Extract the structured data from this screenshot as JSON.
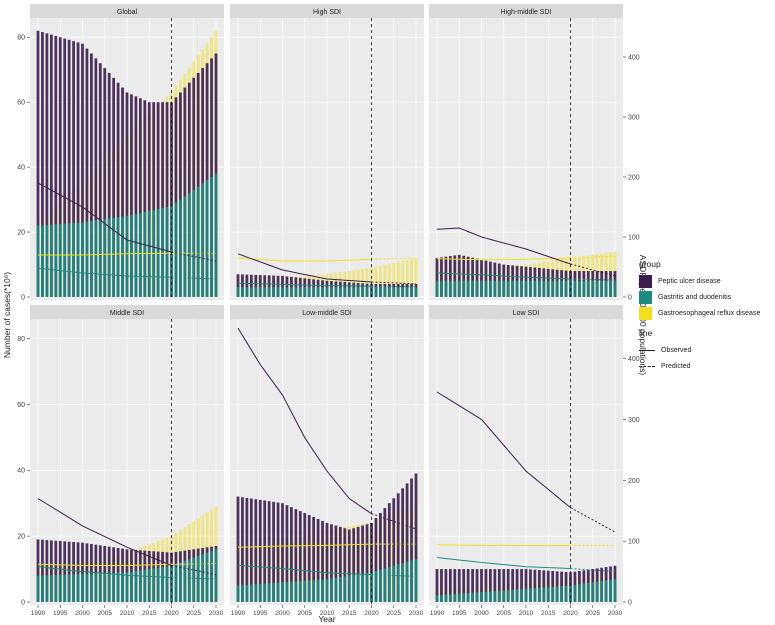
{
  "colors": {
    "peptic": "#3b1d4e",
    "gastritis": "#1e8b80",
    "gerd": "#f0e020",
    "panel_bg": "#ebebeb",
    "strip_bg": "#d9d9d9",
    "grid": "#ffffff"
  },
  "axes": {
    "xlabel": "Year",
    "ylabel_left": "Number of cases(*10⁶)",
    "ylabel_right": "ASDR (per 100000 populations)",
    "x_ticks": [
      "1990",
      "1995",
      "2000",
      "2005",
      "2010",
      "2015",
      "2020",
      "2025",
      "2030"
    ],
    "y_left_ticks": [
      "0",
      "20",
      "40",
      "60",
      "80"
    ],
    "y_right_ticks": [
      "0",
      "100",
      "200",
      "300",
      "400"
    ]
  },
  "legend": {
    "group_title": "group",
    "group_items": [
      "Peptic ulcer disease",
      "Gastritis and duodenitis",
      "Gastroesophageal reflux disease"
    ],
    "line_title": "line",
    "line_items": [
      "Observed",
      "Predicted"
    ]
  },
  "chart_data": {
    "type": "bar",
    "x_range": [
      1990,
      2030
    ],
    "observed_until": 2020,
    "ylim_left": [
      0,
      85
    ],
    "ylim_right": [
      0,
      460
    ],
    "panels": [
      {
        "title": "Global",
        "bars": {
          "peptic": [
            [
              1990,
              82
            ],
            [
              2000,
              78
            ],
            [
              2010,
              63
            ],
            [
              2015,
              60
            ],
            [
              2020,
              60
            ],
            [
              2030,
              75
            ]
          ],
          "gastritis": [
            [
              1990,
              22
            ],
            [
              2000,
              23
            ],
            [
              2010,
              25
            ],
            [
              2020,
              28
            ],
            [
              2030,
              38
            ]
          ],
          "gerd": [
            [
              1990,
              23
            ],
            [
              2000,
              35
            ],
            [
              2010,
              50
            ],
            [
              2020,
              63
            ],
            [
              2030,
              82
            ]
          ]
        },
        "lines": {
          "peptic": [
            [
              1990,
              190
            ],
            [
              2000,
              150
            ],
            [
              2010,
              95
            ],
            [
              2020,
              75
            ],
            [
              2030,
              60
            ]
          ],
          "gastritis": [
            [
              1990,
              48
            ],
            [
              2000,
              40
            ],
            [
              2010,
              35
            ],
            [
              2020,
              33
            ],
            [
              2030,
              30
            ]
          ],
          "gerd": [
            [
              1990,
              70
            ],
            [
              2000,
              70
            ],
            [
              2010,
              72
            ],
            [
              2020,
              73
            ],
            [
              2030,
              73
            ]
          ]
        }
      },
      {
        "title": "High SDI",
        "bars": {
          "peptic": [
            [
              1990,
              7
            ],
            [
              2000,
              6.5
            ],
            [
              2010,
              5
            ],
            [
              2020,
              4
            ],
            [
              2030,
              4
            ]
          ],
          "gastritis": [
            [
              1990,
              3
            ],
            [
              2000,
              3
            ],
            [
              2010,
              3
            ],
            [
              2020,
              3
            ],
            [
              2030,
              3
            ]
          ],
          "gerd": [
            [
              1990,
              6
            ],
            [
              2000,
              6
            ],
            [
              2010,
              7
            ],
            [
              2020,
              9
            ],
            [
              2030,
              12
            ]
          ]
        },
        "lines": {
          "peptic": [
            [
              1990,
              72
            ],
            [
              2000,
              45
            ],
            [
              2010,
              30
            ],
            [
              2020,
              25
            ],
            [
              2030,
              22
            ]
          ],
          "gastritis": [
            [
              1990,
              23
            ],
            [
              2000,
              21
            ],
            [
              2010,
              19
            ],
            [
              2020,
              18
            ],
            [
              2030,
              17
            ]
          ],
          "gerd": [
            [
              1990,
              65
            ],
            [
              2000,
              60
            ],
            [
              2010,
              60
            ],
            [
              2020,
              63
            ],
            [
              2030,
              65
            ]
          ]
        }
      },
      {
        "title": "High-middle SDI",
        "bars": {
          "peptic": [
            [
              1990,
              12
            ],
            [
              1995,
              13
            ],
            [
              2005,
              10
            ],
            [
              2020,
              8
            ],
            [
              2030,
              8
            ]
          ],
          "gastritis": [
            [
              1990,
              5
            ],
            [
              2000,
              5
            ],
            [
              2010,
              5
            ],
            [
              2020,
              5
            ],
            [
              2030,
              5
            ]
          ],
          "gerd": [
            [
              1990,
              9
            ],
            [
              2000,
              9
            ],
            [
              2010,
              10
            ],
            [
              2020,
              12
            ],
            [
              2030,
              14
            ]
          ]
        },
        "lines": {
          "peptic": [
            [
              1990,
              113
            ],
            [
              1995,
              115
            ],
            [
              2000,
              100
            ],
            [
              2010,
              80
            ],
            [
              2020,
              55
            ],
            [
              2030,
              35
            ]
          ],
          "gastritis": [
            [
              1990,
              40
            ],
            [
              2000,
              37
            ],
            [
              2010,
              33
            ],
            [
              2020,
              30
            ],
            [
              2030,
              28
            ]
          ],
          "gerd": [
            [
              1990,
              64
            ],
            [
              2000,
              62
            ],
            [
              2010,
              63
            ],
            [
              2020,
              65
            ],
            [
              2030,
              68
            ]
          ]
        }
      },
      {
        "title": "Middle SDI",
        "bars": {
          "peptic": [
            [
              1990,
              19
            ],
            [
              2000,
              18
            ],
            [
              2010,
              16
            ],
            [
              2020,
              15
            ],
            [
              2030,
              17
            ]
          ],
          "gastritis": [
            [
              1990,
              8
            ],
            [
              2000,
              8.5
            ],
            [
              2010,
              9
            ],
            [
              2020,
              11
            ],
            [
              2030,
              16
            ]
          ],
          "gerd": [
            [
              1990,
              11
            ],
            [
              2000,
              12
            ],
            [
              2010,
              15
            ],
            [
              2020,
              20
            ],
            [
              2030,
              29
            ]
          ]
        },
        "lines": {
          "peptic": [
            [
              1990,
              170
            ],
            [
              2000,
              125
            ],
            [
              2010,
              90
            ],
            [
              2020,
              60
            ],
            [
              2030,
              45
            ]
          ],
          "gastritis": [
            [
              1990,
              58
            ],
            [
              2000,
              50
            ],
            [
              2010,
              44
            ],
            [
              2020,
              40
            ],
            [
              2030,
              38
            ]
          ],
          "gerd": [
            [
              1990,
              62
            ],
            [
              2000,
              60
            ],
            [
              2010,
              60
            ],
            [
              2020,
              62
            ],
            [
              2030,
              63
            ]
          ]
        }
      },
      {
        "title": "Low-middle SDI",
        "bars": {
          "peptic": [
            [
              1990,
              32
            ],
            [
              2000,
              30
            ],
            [
              2010,
              24
            ],
            [
              2015,
              22
            ],
            [
              2020,
              24
            ],
            [
              2030,
              39
            ]
          ],
          "gastritis": [
            [
              1990,
              5
            ],
            [
              2000,
              6
            ],
            [
              2010,
              7
            ],
            [
              2020,
              9
            ],
            [
              2030,
              13
            ]
          ],
          "gerd": [
            [
              1990,
              15
            ],
            [
              2000,
              18
            ],
            [
              2010,
              22
            ],
            [
              2020,
              24
            ],
            [
              2030,
              30
            ]
          ]
        },
        "lines": {
          "peptic": [
            [
              1990,
              450
            ],
            [
              1995,
              390
            ],
            [
              2000,
              340
            ],
            [
              2005,
              270
            ],
            [
              2010,
              215
            ],
            [
              2015,
              170
            ],
            [
              2020,
              145
            ],
            [
              2030,
              120
            ]
          ],
          "gastritis": [
            [
              1990,
              60
            ],
            [
              2000,
              55
            ],
            [
              2010,
              48
            ],
            [
              2020,
              45
            ],
            [
              2030,
              42
            ]
          ],
          "gerd": [
            [
              1990,
              90
            ],
            [
              2000,
              92
            ],
            [
              2010,
              93
            ],
            [
              2020,
              95
            ],
            [
              2030,
              95
            ]
          ]
        }
      },
      {
        "title": "Low SDI",
        "bars": {
          "peptic": [
            [
              1990,
              10
            ],
            [
              2000,
              10
            ],
            [
              2010,
              10
            ],
            [
              2020,
              9
            ],
            [
              2030,
              11
            ]
          ],
          "gastritis": [
            [
              1990,
              2
            ],
            [
              2000,
              3
            ],
            [
              2010,
              4
            ],
            [
              2020,
              5
            ],
            [
              2030,
              7
            ]
          ],
          "gerd": [
            [
              1990,
              4
            ],
            [
              2000,
              5
            ],
            [
              2010,
              6
            ],
            [
              2020,
              7
            ],
            [
              2030,
              9
            ]
          ]
        },
        "lines": {
          "peptic": [
            [
              1990,
              345
            ],
            [
              2000,
              300
            ],
            [
              2010,
              215
            ],
            [
              2020,
              155
            ],
            [
              2030,
              115
            ]
          ],
          "gastritis": [
            [
              1990,
              73
            ],
            [
              2000,
              65
            ],
            [
              2010,
              58
            ],
            [
              2020,
              55
            ],
            [
              2030,
              50
            ]
          ],
          "gerd": [
            [
              1990,
              94
            ],
            [
              2000,
              93
            ],
            [
              2010,
              93
            ],
            [
              2020,
              93
            ],
            [
              2030,
              93
            ]
          ]
        }
      }
    ]
  }
}
